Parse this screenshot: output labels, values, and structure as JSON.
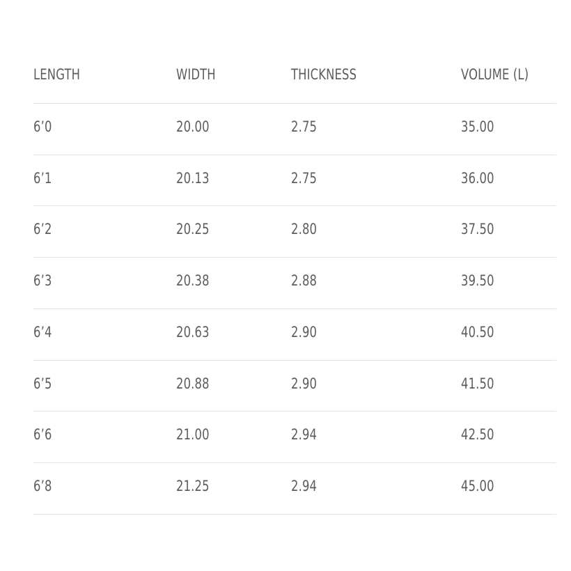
{
  "table": {
    "header": [
      "LENGTH",
      "WIDTH",
      "THICKNESS",
      "VOLUME (L)"
    ],
    "rows": [
      [
        "6’0",
        "20.00",
        "2.75",
        "35.00"
      ],
      [
        "6’1",
        "20.13",
        "2.75",
        "36.00"
      ],
      [
        "6’2",
        "20.25",
        "2.80",
        "37.50"
      ],
      [
        "6’3",
        "20.38",
        "2.88",
        "39.50"
      ],
      [
        "6’4",
        "20.63",
        "2.90",
        "40.50"
      ],
      [
        "6’5",
        "20.88",
        "2.90",
        "41.50"
      ],
      [
        "6’6",
        "21.00",
        "2.94",
        "42.50"
      ],
      [
        "6’8",
        "21.25",
        "2.94",
        "45.00"
      ]
    ]
  }
}
